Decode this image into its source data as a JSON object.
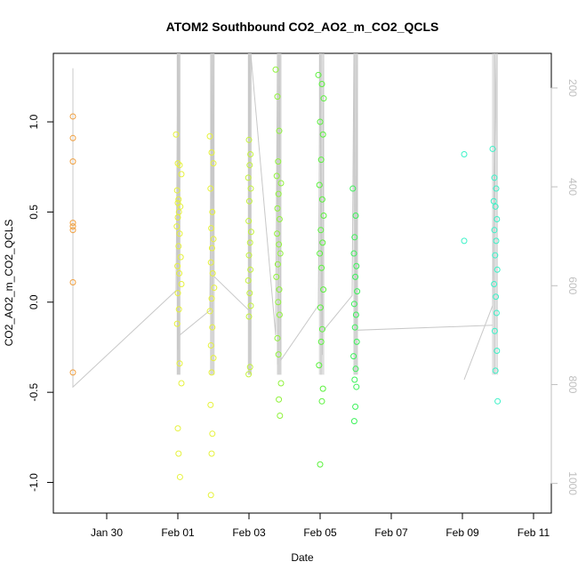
{
  "chart_data": {
    "type": "scatter",
    "title": "ATOM2 Southbound CO2_AO2_m_CO2_QCLS",
    "xlabel": "Date",
    "ylabel": "CO2_AO2_m_CO2_QCLS",
    "x_tick_labels": [
      "Jan 30",
      "Feb 01",
      "Feb 03",
      "Feb 05",
      "Feb 07",
      "Feb 09",
      "Feb 11"
    ],
    "x_tick_days": [
      30,
      32,
      34,
      36,
      38,
      40,
      42
    ],
    "xlim_days": [
      28.5,
      42.5
    ],
    "ylim": [
      -1.17,
      1.38
    ],
    "y_ticks": [
      -1.0,
      -0.5,
      0.0,
      0.5,
      1.0
    ],
    "y_tick_labels": [
      "-1.0",
      "-0.5",
      "0.0",
      "0.5",
      "1.0"
    ],
    "right_axis": {
      "ticks": [
        200,
        400,
        600,
        800,
        1000
      ],
      "tick_labels": [
        "200",
        "400",
        "600",
        "800",
        "1000"
      ],
      "lim": [
        1060,
        130
      ],
      "reversed": true,
      "color": "#bfbfbf"
    },
    "grid": false,
    "legend": "none",
    "track_color": "#c8c8c8",
    "groups": [
      {
        "color": "#f0a040",
        "x": [
          29.05,
          29.05,
          29.05,
          29.05,
          29.05,
          29.05,
          29.05,
          29.05
        ],
        "y": [
          1.03,
          0.91,
          0.78,
          0.44,
          0.42,
          0.4,
          0.11,
          -0.39
        ]
      },
      {
        "color": "#e6f23c",
        "x": [
          31.95,
          32.0,
          32.05,
          32.1,
          31.98,
          32.02,
          32.0,
          32.07,
          32.03,
          32.0,
          31.97,
          32.05,
          32.02,
          32.08,
          31.99,
          32.04,
          32.1,
          32.0,
          32.03,
          31.98,
          32.05,
          32.1,
          32.0,
          32.02,
          32.06
        ],
        "y": [
          0.93,
          0.77,
          0.76,
          0.71,
          0.62,
          0.57,
          0.55,
          0.53,
          0.5,
          0.47,
          0.42,
          0.38,
          0.31,
          0.25,
          0.2,
          0.16,
          0.1,
          0.05,
          -0.04,
          -0.12,
          -0.34,
          -0.45,
          -0.7,
          -0.84,
          -0.97
        ]
      },
      {
        "color": "#e6f23c",
        "x": [
          32.9,
          32.95,
          33.0,
          32.92,
          32.97,
          32.94,
          33.0,
          32.96,
          32.93,
          32.98,
          33.02,
          32.95,
          32.9,
          32.97,
          32.93,
          33.0,
          32.95,
          32.92,
          32.97,
          32.95,
          32.93
        ],
        "y": [
          0.92,
          0.83,
          0.77,
          0.63,
          0.5,
          0.41,
          0.35,
          0.3,
          0.22,
          0.16,
          0.08,
          0.02,
          -0.05,
          -0.14,
          -0.24,
          -0.31,
          -0.39,
          -0.57,
          -0.73,
          -0.84,
          -1.07
        ]
      },
      {
        "color": "#c4f23c",
        "x": [
          34.0,
          34.04,
          34.02,
          33.98,
          34.05,
          34.01,
          33.99,
          34.06,
          34.03,
          34.0,
          34.04,
          33.98,
          34.02,
          34.05,
          34.0,
          34.03,
          33.99
        ],
        "y": [
          0.9,
          0.82,
          0.76,
          0.69,
          0.63,
          0.56,
          0.45,
          0.39,
          0.33,
          0.26,
          0.18,
          0.12,
          0.05,
          -0.02,
          -0.08,
          -0.36,
          -0.4
        ]
      },
      {
        "color": "#90f23c",
        "x": [
          34.75,
          34.8,
          34.85,
          34.82,
          34.78,
          34.9,
          34.83,
          34.8,
          34.86,
          34.79,
          34.84,
          34.88,
          34.81,
          34.77,
          34.85,
          34.82,
          34.86,
          34.8,
          34.83,
          34.9,
          34.84,
          34.87
        ],
        "y": [
          1.29,
          1.14,
          0.95,
          0.78,
          0.7,
          0.66,
          0.6,
          0.52,
          0.46,
          0.38,
          0.32,
          0.27,
          0.21,
          0.14,
          0.07,
          0.0,
          -0.07,
          -0.2,
          -0.29,
          -0.45,
          -0.54,
          -0.63
        ]
      },
      {
        "color": "#5af23c",
        "x": [
          35.95,
          36.05,
          36.1,
          36.0,
          36.08,
          36.03,
          35.98,
          36.06,
          36.1,
          36.02,
          36.07,
          35.99,
          36.04,
          36.09,
          36.01,
          36.06,
          36.03,
          35.97,
          36.08,
          36.05,
          36.0
        ],
        "y": [
          1.26,
          1.21,
          1.13,
          1.0,
          0.93,
          0.79,
          0.65,
          0.57,
          0.48,
          0.4,
          0.33,
          0.27,
          0.19,
          0.07,
          -0.03,
          -0.15,
          -0.22,
          -0.35,
          -0.48,
          -0.55,
          -0.9
        ]
      },
      {
        "color": "#3cf25a",
        "x": [
          36.92,
          37.0,
          36.97,
          36.95,
          37.02,
          36.99,
          37.04,
          36.96,
          37.01,
          36.98,
          37.03,
          36.94,
          37.0,
          36.97,
          37.02,
          36.99,
          36.96
        ],
        "y": [
          0.63,
          0.48,
          0.36,
          0.27,
          0.2,
          0.14,
          0.06,
          -0.01,
          -0.07,
          -0.14,
          -0.22,
          -0.3,
          -0.37,
          -0.43,
          -0.47,
          -0.58,
          -0.66
        ]
      },
      {
        "color": "#3cf2c8",
        "x": [
          40.05,
          40.05,
          40.85,
          40.9,
          40.95,
          40.88,
          40.93,
          40.97,
          40.9,
          40.95,
          40.92,
          40.98,
          40.89,
          40.94,
          40.96,
          40.91,
          40.97,
          40.93,
          40.99
        ],
        "y": [
          0.82,
          0.34,
          0.85,
          0.69,
          0.63,
          0.56,
          0.53,
          0.46,
          0.4,
          0.34,
          0.26,
          0.18,
          0.1,
          0.03,
          -0.06,
          -0.16,
          -0.27,
          -0.38,
          -0.55
        ]
      }
    ]
  }
}
